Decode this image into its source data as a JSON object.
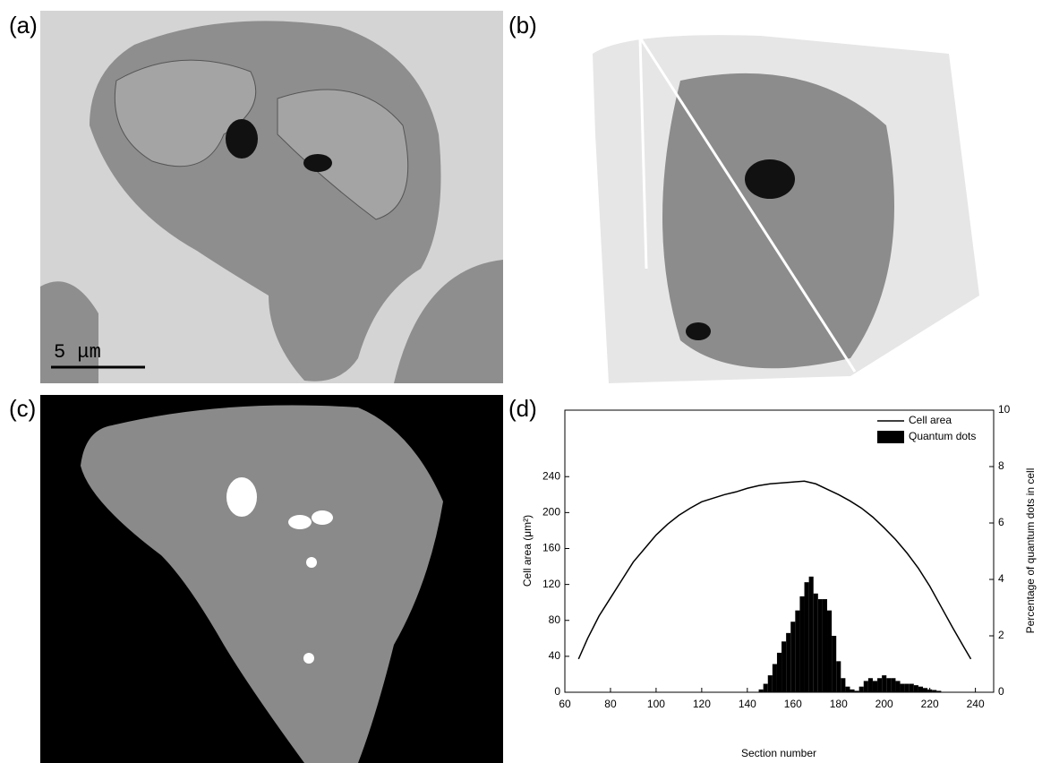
{
  "panels": [
    {
      "label": "(a)"
    },
    {
      "label": "(b)"
    },
    {
      "label": "(c)"
    },
    {
      "label": "(d)"
    }
  ],
  "scale_bar": "5 μm",
  "chart_data": {
    "type": "combo",
    "xlabel": "Section number",
    "ylabel": "Cell area (μm²)",
    "y2label": "Percentage of quantum dots in cell",
    "xlim": [
      60,
      248
    ],
    "xticks": [
      60,
      80,
      100,
      120,
      140,
      160,
      180,
      200,
      220,
      240
    ],
    "ylim": [
      0,
      314
    ],
    "yticks": [
      0,
      40,
      80,
      120,
      160,
      200,
      240
    ],
    "y2lim": [
      0,
      10
    ],
    "y2ticks": [
      0,
      2,
      4,
      6,
      8,
      10
    ],
    "legend": "top-right",
    "series": [
      {
        "name": "Cell area",
        "type": "line",
        "color": "#000000",
        "x": [
          66,
          70,
          75,
          80,
          85,
          90,
          95,
          100,
          105,
          110,
          115,
          120,
          125,
          130,
          135,
          140,
          145,
          150,
          155,
          160,
          165,
          170,
          175,
          180,
          185,
          190,
          195,
          200,
          205,
          210,
          215,
          220,
          225,
          230,
          235,
          238
        ],
        "values": [
          37,
          60,
          85,
          105,
          125,
          145,
          160,
          175,
          187,
          197,
          205,
          212,
          216,
          220,
          223,
          227,
          230,
          232,
          233,
          234,
          235,
          232,
          226,
          220,
          213,
          205,
          195,
          183,
          170,
          155,
          138,
          118,
          95,
          72,
          50,
          37
        ]
      },
      {
        "name": "Quantum dots",
        "type": "bar",
        "axis": "y2",
        "color": "#000000",
        "x": [
          146,
          148,
          150,
          152,
          154,
          156,
          158,
          160,
          162,
          164,
          166,
          168,
          170,
          172,
          174,
          176,
          178,
          180,
          182,
          184,
          186,
          188,
          190,
          192,
          194,
          196,
          198,
          200,
          202,
          204,
          206,
          208,
          210,
          212,
          214,
          216,
          218,
          220,
          222,
          224
        ],
        "values": [
          0.1,
          0.3,
          0.6,
          1.0,
          1.4,
          1.8,
          2.1,
          2.5,
          2.9,
          3.4,
          3.9,
          4.1,
          3.5,
          3.3,
          3.3,
          2.9,
          2.0,
          1.1,
          0.5,
          0.2,
          0.1,
          0.05,
          0.2,
          0.4,
          0.5,
          0.4,
          0.5,
          0.6,
          0.5,
          0.5,
          0.4,
          0.3,
          0.3,
          0.3,
          0.25,
          0.2,
          0.15,
          0.1,
          0.08,
          0.05
        ]
      }
    ]
  }
}
